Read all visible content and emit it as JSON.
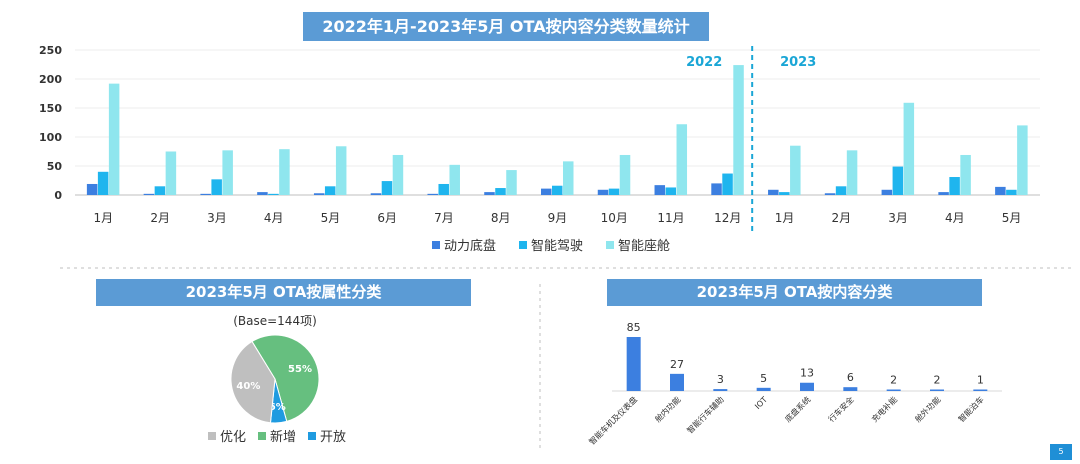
{
  "titles": {
    "top": "2022年1月-2023年5月 OTA按内容分类数量统计",
    "left": "2023年5月 OTA按属性分类",
    "right": "2023年5月 OTA按内容分类"
  },
  "page_number": "5",
  "colors": {
    "banner": "#5b9bd5",
    "s1": "#3c7fe0",
    "s2": "#1fb5ee",
    "s3": "#8fe6ee",
    "grey": "#bfbfbf",
    "green": "#66bf7f",
    "blue": "#1f9be0",
    "divider": "#1aa6d6"
  },
  "chart_data": [
    {
      "type": "bar",
      "title": "2022年1月-2023年5月 OTA按内容分类数量统计",
      "categories": [
        "1月",
        "2月",
        "3月",
        "4月",
        "5月",
        "6月",
        "7月",
        "8月",
        "9月",
        "10月",
        "11月",
        "12月",
        "1月",
        "2月",
        "3月",
        "4月",
        "5月"
      ],
      "year_labels": [
        "2022",
        "2023"
      ],
      "ylim": [
        0,
        250
      ],
      "yticks": [
        0,
        50,
        100,
        150,
        200,
        250
      ],
      "grid": true,
      "legend": "bottom",
      "series": [
        {
          "name": "动力底盘",
          "values": [
            19,
            2,
            2,
            5,
            3,
            3,
            2,
            5,
            11,
            9,
            17,
            20,
            9,
            3,
            9,
            5,
            14
          ]
        },
        {
          "name": "智能驾驶",
          "values": [
            40,
            15,
            27,
            2,
            15,
            24,
            19,
            12,
            16,
            11,
            13,
            37,
            5,
            15,
            49,
            31,
            9
          ]
        },
        {
          "name": "智能座舱",
          "values": [
            192,
            75,
            77,
            79,
            84,
            69,
            52,
            43,
            58,
            69,
            122,
            224,
            85,
            77,
            159,
            69,
            120
          ]
        }
      ]
    },
    {
      "type": "pie",
      "title": "2023年5月 OTA按属性分类",
      "subtitle": "(Base=144项)",
      "slices": [
        {
          "name": "新增",
          "value": 55,
          "label": "55%"
        },
        {
          "name": "开放",
          "value": 6,
          "label": "6%"
        },
        {
          "name": "优化",
          "value": 40,
          "label": "40%"
        }
      ],
      "legend": "bottom"
    },
    {
      "type": "bar",
      "title": "2023年5月 OTA按内容分类",
      "categories": [
        "智能车机及仪表盘",
        "舱内功能",
        "智能行车辅助",
        "IOT",
        "底盘系统",
        "行车安全",
        "充电补能",
        "舱外功能",
        "智能泊车"
      ],
      "values": [
        85,
        27,
        3,
        5,
        13,
        6,
        2,
        2,
        1
      ],
      "labels": [
        "85",
        "27",
        "3",
        "5",
        "13",
        "6",
        "2",
        "2",
        "1"
      ]
    }
  ]
}
